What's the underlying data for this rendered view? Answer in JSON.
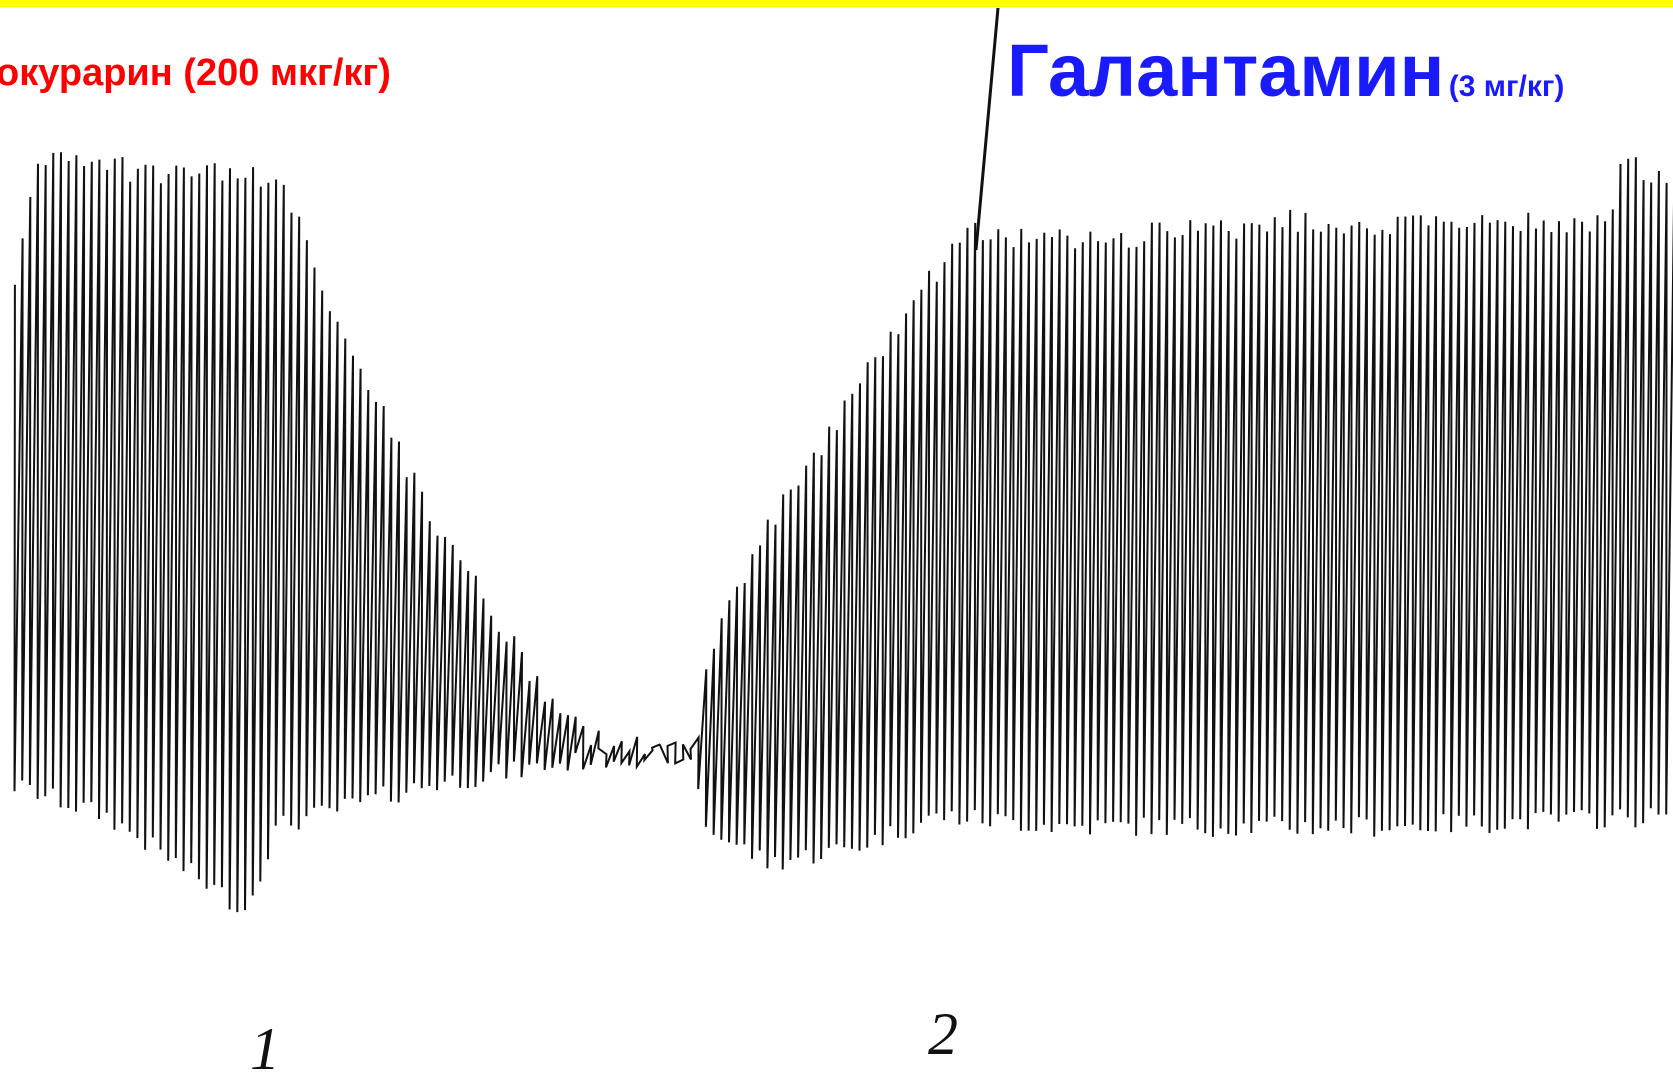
{
  "labels": {
    "left_drug": "окурарин (200 мкг/кг)",
    "right_drug": "Галантамин",
    "right_dose": "(3 мг/кг)",
    "mark_1": "1",
    "mark_2": "2"
  }
}
